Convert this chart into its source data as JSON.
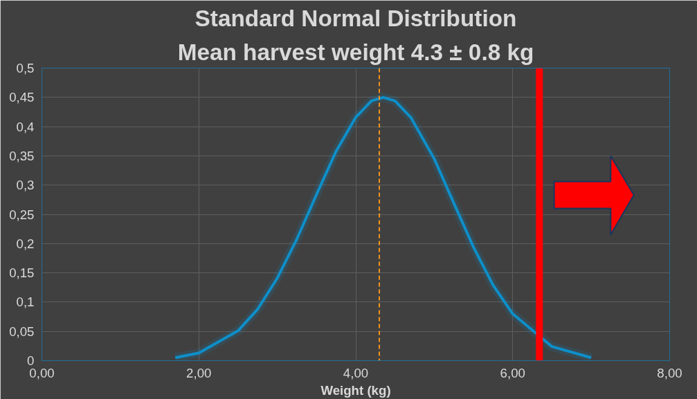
{
  "chart_data": {
    "type": "line",
    "title": "Standard Normal Distribution",
    "subtitle": "Mean harvest weight 4.3 ± 0.8 kg",
    "xlabel": "Weight (kg)",
    "x": [
      1.7,
      2.0,
      2.5,
      2.75,
      3.0,
      3.25,
      3.5,
      3.75,
      4.0,
      4.2,
      4.35,
      4.5,
      4.7,
      5.0,
      5.25,
      5.5,
      5.75,
      6.0,
      6.5,
      7.0
    ],
    "series": [
      {
        "color": "#0e8fc9",
        "values": [
          0.005,
          0.013,
          0.051,
          0.088,
          0.141,
          0.208,
          0.284,
          0.358,
          0.416,
          0.444,
          0.45,
          0.444,
          0.416,
          0.345,
          0.269,
          0.194,
          0.129,
          0.08,
          0.024,
          0.005
        ]
      }
    ],
    "xlim": [
      0,
      8
    ],
    "xticks": [
      {
        "value": 0,
        "label": "0,00"
      },
      {
        "value": 2,
        "label": "2,00"
      },
      {
        "value": 4,
        "label": "4,00"
      },
      {
        "value": 6,
        "label": "6,00"
      },
      {
        "value": 8,
        "label": "8,00"
      }
    ],
    "ylim": [
      0,
      0.5
    ],
    "yticks": [
      0,
      {
        "value": 0.05,
        "label": "0,05"
      },
      {
        "value": 0.1,
        "label": "0,1"
      },
      {
        "value": 0.15,
        "label": "0,15"
      },
      {
        "value": 0.2,
        "label": "0,2"
      },
      {
        "value": 0.25,
        "label": "0,25"
      },
      {
        "value": 0.3,
        "label": "0,3"
      },
      {
        "value": 0.35,
        "label": "0,35"
      },
      {
        "value": 0.4,
        "label": "0,4"
      },
      {
        "value": 0.45,
        "label": "0,45"
      },
      {
        "value": 0.5,
        "label": "0,5"
      }
    ],
    "ref_lines": [
      {
        "axis": "x",
        "value": 4.3,
        "color": "#f7941d",
        "line_style": "dashed"
      },
      {
        "axis": "x",
        "value": 6.34,
        "color": "#ff0000",
        "line_style": "solid"
      }
    ],
    "grid": true,
    "line_style": "solid",
    "marker": "none"
  }
}
